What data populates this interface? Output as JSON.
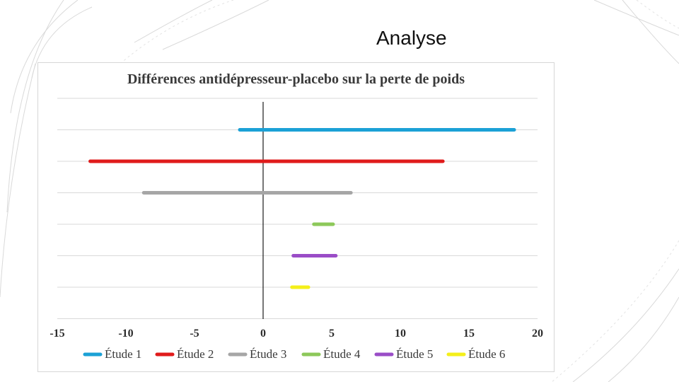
{
  "slide": {
    "title": "Analyse"
  },
  "chart_data": {
    "type": "bar",
    "subtype": "range",
    "title": "Différences antidépresseur-placebo sur la perte de poids",
    "xlabel": "",
    "ylabel": "",
    "xlim": [
      -15,
      20
    ],
    "x_ticks": [
      -15,
      -10,
      -5,
      0,
      5,
      10,
      15,
      20
    ],
    "grid": true,
    "legend_position": "bottom",
    "series": [
      {
        "name": "Étude 1",
        "low": -1.7,
        "high": 18.3,
        "color": "#1ba1d6"
      },
      {
        "name": "Étude 2",
        "low": -12.6,
        "high": 13.1,
        "color": "#e01b1b"
      },
      {
        "name": "Étude 3",
        "low": -8.7,
        "high": 6.4,
        "color": "#a6a6a6"
      },
      {
        "name": "Étude 4",
        "low": 3.7,
        "high": 5.1,
        "color": "#8dc85a"
      },
      {
        "name": "Étude 5",
        "low": 2.2,
        "high": 5.3,
        "color": "#9a4dc7"
      },
      {
        "name": "Étude 6",
        "low": 2.1,
        "high": 3.3,
        "color": "#f4ef1a"
      }
    ]
  }
}
